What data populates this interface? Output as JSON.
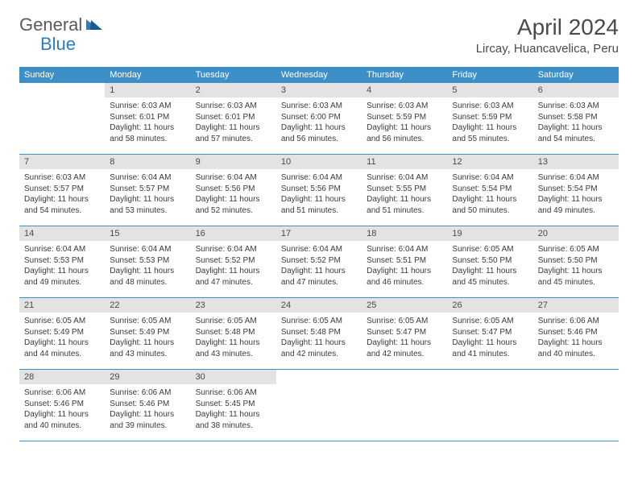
{
  "brand": {
    "part1": "General",
    "part2": "Blue"
  },
  "title": "April 2024",
  "location": "Lircay, Huancavelica, Peru",
  "colors": {
    "header_bg": "#3d8fc8",
    "daynum_bg": "#e3e3e3",
    "text": "#4a4a4a",
    "week_border": "#3d8fc8",
    "brand_gray": "#5a5a5a",
    "brand_blue": "#2d7cc1"
  },
  "day_names": [
    "Sunday",
    "Monday",
    "Tuesday",
    "Wednesday",
    "Thursday",
    "Friday",
    "Saturday"
  ],
  "weeks": [
    [
      {
        "n": "",
        "l1": "",
        "l2": "",
        "l3": "",
        "l4": ""
      },
      {
        "n": "1",
        "l1": "Sunrise: 6:03 AM",
        "l2": "Sunset: 6:01 PM",
        "l3": "Daylight: 11 hours",
        "l4": "and 58 minutes."
      },
      {
        "n": "2",
        "l1": "Sunrise: 6:03 AM",
        "l2": "Sunset: 6:01 PM",
        "l3": "Daylight: 11 hours",
        "l4": "and 57 minutes."
      },
      {
        "n": "3",
        "l1": "Sunrise: 6:03 AM",
        "l2": "Sunset: 6:00 PM",
        "l3": "Daylight: 11 hours",
        "l4": "and 56 minutes."
      },
      {
        "n": "4",
        "l1": "Sunrise: 6:03 AM",
        "l2": "Sunset: 5:59 PM",
        "l3": "Daylight: 11 hours",
        "l4": "and 56 minutes."
      },
      {
        "n": "5",
        "l1": "Sunrise: 6:03 AM",
        "l2": "Sunset: 5:59 PM",
        "l3": "Daylight: 11 hours",
        "l4": "and 55 minutes."
      },
      {
        "n": "6",
        "l1": "Sunrise: 6:03 AM",
        "l2": "Sunset: 5:58 PM",
        "l3": "Daylight: 11 hours",
        "l4": "and 54 minutes."
      }
    ],
    [
      {
        "n": "7",
        "l1": "Sunrise: 6:03 AM",
        "l2": "Sunset: 5:57 PM",
        "l3": "Daylight: 11 hours",
        "l4": "and 54 minutes."
      },
      {
        "n": "8",
        "l1": "Sunrise: 6:04 AM",
        "l2": "Sunset: 5:57 PM",
        "l3": "Daylight: 11 hours",
        "l4": "and 53 minutes."
      },
      {
        "n": "9",
        "l1": "Sunrise: 6:04 AM",
        "l2": "Sunset: 5:56 PM",
        "l3": "Daylight: 11 hours",
        "l4": "and 52 minutes."
      },
      {
        "n": "10",
        "l1": "Sunrise: 6:04 AM",
        "l2": "Sunset: 5:56 PM",
        "l3": "Daylight: 11 hours",
        "l4": "and 51 minutes."
      },
      {
        "n": "11",
        "l1": "Sunrise: 6:04 AM",
        "l2": "Sunset: 5:55 PM",
        "l3": "Daylight: 11 hours",
        "l4": "and 51 minutes."
      },
      {
        "n": "12",
        "l1": "Sunrise: 6:04 AM",
        "l2": "Sunset: 5:54 PM",
        "l3": "Daylight: 11 hours",
        "l4": "and 50 minutes."
      },
      {
        "n": "13",
        "l1": "Sunrise: 6:04 AM",
        "l2": "Sunset: 5:54 PM",
        "l3": "Daylight: 11 hours",
        "l4": "and 49 minutes."
      }
    ],
    [
      {
        "n": "14",
        "l1": "Sunrise: 6:04 AM",
        "l2": "Sunset: 5:53 PM",
        "l3": "Daylight: 11 hours",
        "l4": "and 49 minutes."
      },
      {
        "n": "15",
        "l1": "Sunrise: 6:04 AM",
        "l2": "Sunset: 5:53 PM",
        "l3": "Daylight: 11 hours",
        "l4": "and 48 minutes."
      },
      {
        "n": "16",
        "l1": "Sunrise: 6:04 AM",
        "l2": "Sunset: 5:52 PM",
        "l3": "Daylight: 11 hours",
        "l4": "and 47 minutes."
      },
      {
        "n": "17",
        "l1": "Sunrise: 6:04 AM",
        "l2": "Sunset: 5:52 PM",
        "l3": "Daylight: 11 hours",
        "l4": "and 47 minutes."
      },
      {
        "n": "18",
        "l1": "Sunrise: 6:04 AM",
        "l2": "Sunset: 5:51 PM",
        "l3": "Daylight: 11 hours",
        "l4": "and 46 minutes."
      },
      {
        "n": "19",
        "l1": "Sunrise: 6:05 AM",
        "l2": "Sunset: 5:50 PM",
        "l3": "Daylight: 11 hours",
        "l4": "and 45 minutes."
      },
      {
        "n": "20",
        "l1": "Sunrise: 6:05 AM",
        "l2": "Sunset: 5:50 PM",
        "l3": "Daylight: 11 hours",
        "l4": "and 45 minutes."
      }
    ],
    [
      {
        "n": "21",
        "l1": "Sunrise: 6:05 AM",
        "l2": "Sunset: 5:49 PM",
        "l3": "Daylight: 11 hours",
        "l4": "and 44 minutes."
      },
      {
        "n": "22",
        "l1": "Sunrise: 6:05 AM",
        "l2": "Sunset: 5:49 PM",
        "l3": "Daylight: 11 hours",
        "l4": "and 43 minutes."
      },
      {
        "n": "23",
        "l1": "Sunrise: 6:05 AM",
        "l2": "Sunset: 5:48 PM",
        "l3": "Daylight: 11 hours",
        "l4": "and 43 minutes."
      },
      {
        "n": "24",
        "l1": "Sunrise: 6:05 AM",
        "l2": "Sunset: 5:48 PM",
        "l3": "Daylight: 11 hours",
        "l4": "and 42 minutes."
      },
      {
        "n": "25",
        "l1": "Sunrise: 6:05 AM",
        "l2": "Sunset: 5:47 PM",
        "l3": "Daylight: 11 hours",
        "l4": "and 42 minutes."
      },
      {
        "n": "26",
        "l1": "Sunrise: 6:05 AM",
        "l2": "Sunset: 5:47 PM",
        "l3": "Daylight: 11 hours",
        "l4": "and 41 minutes."
      },
      {
        "n": "27",
        "l1": "Sunrise: 6:06 AM",
        "l2": "Sunset: 5:46 PM",
        "l3": "Daylight: 11 hours",
        "l4": "and 40 minutes."
      }
    ],
    [
      {
        "n": "28",
        "l1": "Sunrise: 6:06 AM",
        "l2": "Sunset: 5:46 PM",
        "l3": "Daylight: 11 hours",
        "l4": "and 40 minutes."
      },
      {
        "n": "29",
        "l1": "Sunrise: 6:06 AM",
        "l2": "Sunset: 5:46 PM",
        "l3": "Daylight: 11 hours",
        "l4": "and 39 minutes."
      },
      {
        "n": "30",
        "l1": "Sunrise: 6:06 AM",
        "l2": "Sunset: 5:45 PM",
        "l3": "Daylight: 11 hours",
        "l4": "and 38 minutes."
      },
      {
        "n": "",
        "l1": "",
        "l2": "",
        "l3": "",
        "l4": ""
      },
      {
        "n": "",
        "l1": "",
        "l2": "",
        "l3": "",
        "l4": ""
      },
      {
        "n": "",
        "l1": "",
        "l2": "",
        "l3": "",
        "l4": ""
      },
      {
        "n": "",
        "l1": "",
        "l2": "",
        "l3": "",
        "l4": ""
      }
    ]
  ]
}
